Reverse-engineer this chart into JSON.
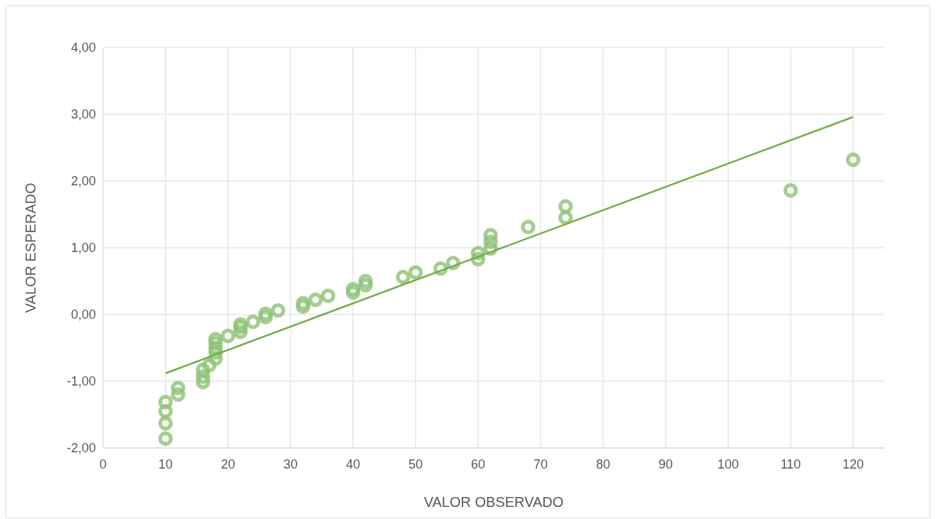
{
  "chart_data": {
    "type": "scatter",
    "xlabel": "VALOR OBSERVADO",
    "ylabel": "VALOR ESPERADO",
    "xlim": [
      0,
      125
    ],
    "xticks": [
      0,
      10,
      20,
      30,
      40,
      50,
      60,
      70,
      80,
      90,
      100,
      110,
      120
    ],
    "ylim": [
      -2,
      4
    ],
    "yticks": [
      {
        "value": -2,
        "label": "-2,00"
      },
      {
        "value": -1,
        "label": "-1,00"
      },
      {
        "value": 0,
        "label": "0,00"
      },
      {
        "value": 1,
        "label": "1,00"
      },
      {
        "value": 2,
        "label": "2,00"
      },
      {
        "value": 3,
        "label": "3,00"
      },
      {
        "value": 4,
        "label": "4,00"
      }
    ],
    "grid": true,
    "series": [
      {
        "color": "#8fc275",
        "marker": "circle",
        "x": [
          10,
          10,
          10,
          10,
          12,
          12,
          16,
          16,
          16,
          17,
          18,
          18,
          18,
          18,
          18,
          20,
          22,
          22,
          22,
          24,
          26,
          26,
          28,
          32,
          32,
          34,
          36,
          40,
          40,
          42,
          42,
          48,
          50,
          54,
          56,
          60,
          60,
          62,
          62,
          62,
          68,
          74,
          74,
          110,
          120
        ],
        "values": [
          -1.86,
          -1.63,
          -1.45,
          -1.31,
          -1.2,
          -1.1,
          -1.01,
          -0.93,
          -0.83,
          -0.76,
          -0.66,
          -0.57,
          -0.5,
          -0.43,
          -0.37,
          -0.32,
          -0.26,
          -0.19,
          -0.15,
          -0.11,
          -0.04,
          0.01,
          0.06,
          0.12,
          0.17,
          0.22,
          0.28,
          0.33,
          0.38,
          0.44,
          0.5,
          0.56,
          0.63,
          0.69,
          0.77,
          0.83,
          0.92,
          0.99,
          1.09,
          1.19,
          1.31,
          1.45,
          1.62,
          1.86,
          2.32
        ]
      },
      {
        "type": "line",
        "color": "#70ad47",
        "line_style": "solid",
        "x": [
          10,
          120
        ],
        "values": [
          -0.88,
          2.96
        ]
      }
    ]
  }
}
